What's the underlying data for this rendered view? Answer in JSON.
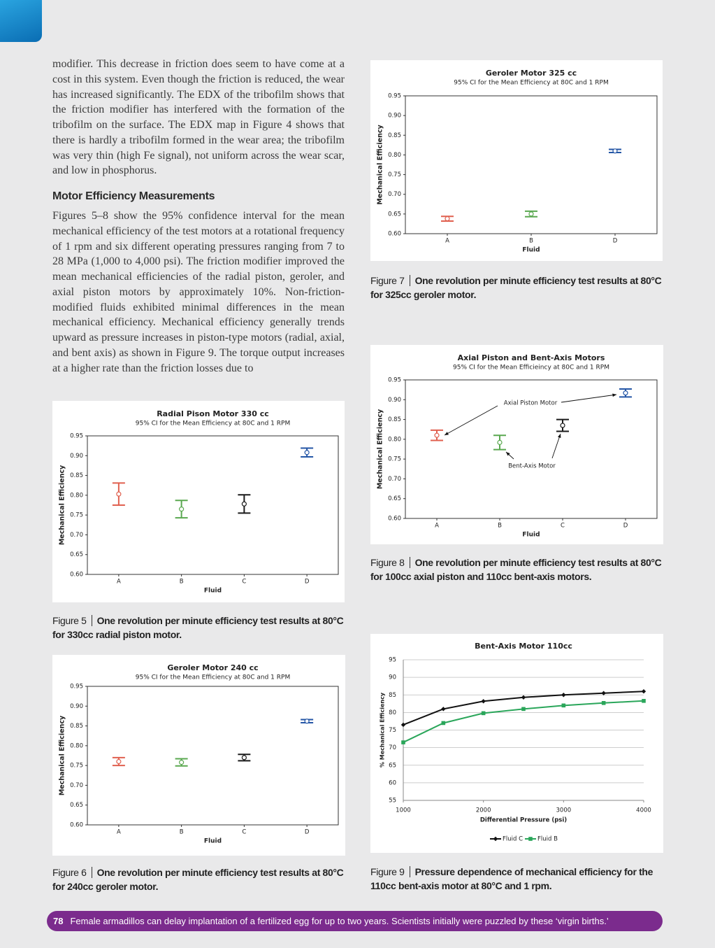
{
  "body": {
    "paragraphs": [
      "modifier. This decrease in friction does seem to have come at a cost in this system. Even though the friction is reduced, the wear has increased significantly. The EDX of the tribofilm shows that the friction modifier has interfered with the formation of the tribofilm on the surface. The EDX map in Figure 4 shows that there is hardly a tribofilm formed in the wear area; the tribofilm was very thin (high Fe signal), not uniform across the wear scar, and low in phosphorus.",
      "Figures 5–8 show the 95% confidence interval for the mean mechanical efficiency of the test motors at a rotational frequency of 1 rpm and six different operating pressures ranging from 7 to 28 MPa (1,000 to 4,000 psi). The friction modifier improved the mean mechanical efficiencies of the radial piston, geroler, and axial piston motors by approximately 10%. Non-friction-modified fluids exhibited minimal differences in the mean mechanical efficiency. Mechanical efficiency generally trends upward as pressure increases in piston-type motors (radial, axial, and bent axis) as shown in Figure 9. The torque output increases at a higher rate than the friction losses due to"
    ],
    "heading": "Motor Efficiency Measurements"
  },
  "chart_data": [
    {
      "type": "errorbar",
      "figure": "Figure 5",
      "caption": "One revolution per minute efficiency test results at 80°C for 330cc radial piston motor.",
      "title": "Radial Pison Motor 330 cc",
      "subtitle": "95% CI for the Mean Efficiency at 80C and 1 RPM",
      "xlabel": "Fluid",
      "ylabel": "Mechanical Efficiency",
      "categories": [
        "A",
        "B",
        "C",
        "D"
      ],
      "values": [
        0.803,
        0.765,
        0.778,
        0.908
      ],
      "errors": [
        0.028,
        0.022,
        0.023,
        0.011
      ],
      "colors": [
        "#e0604f",
        "#5aa850",
        "#1a1a1a",
        "#2456a6"
      ],
      "ylim": [
        0.6,
        0.95
      ],
      "yticks": [
        {
          "value": 0.6,
          "label": "0.60"
        },
        0.65,
        {
          "value": 0.7,
          "label": "0.70"
        },
        0.75,
        {
          "value": 0.8,
          "label": "0.80"
        },
        0.85,
        {
          "value": 0.9,
          "label": "0.90"
        },
        0.95
      ]
    },
    {
      "type": "errorbar",
      "figure": "Figure 6",
      "caption": "One revolution per minute efficiency test results at 80°C for 240cc geroler motor.",
      "title": "Geroler Motor 240 cc",
      "subtitle": "95% CI for the Mean Efficiency at 80C and 1 RPM",
      "xlabel": "Fluid",
      "ylabel": "Mechanical Efficiency",
      "categories": [
        "A",
        "B",
        "C",
        "D"
      ],
      "values": [
        0.76,
        0.758,
        0.77,
        0.862
      ],
      "errors": [
        0.01,
        0.009,
        0.008,
        0.004
      ],
      "colors": [
        "#e0604f",
        "#5aa850",
        "#1a1a1a",
        "#2456a6"
      ],
      "ylim": [
        0.6,
        0.95
      ],
      "yticks": [
        {
          "value": 0.6,
          "label": "0.60"
        },
        0.65,
        {
          "value": 0.7,
          "label": "0.70"
        },
        0.75,
        {
          "value": 0.8,
          "label": "0.80"
        },
        0.85,
        {
          "value": 0.9,
          "label": "0.90"
        },
        0.95
      ]
    },
    {
      "type": "errorbar",
      "figure": "Figure 7",
      "caption": "One revolution per minute efficiency test results at 80°C for 325cc geroler motor.",
      "title": "Geroler Motor 325 cc",
      "subtitle": "95% CI for the Mean Efficiency at 80C and 1 RPM",
      "xlabel": "Fluid",
      "ylabel": "Mechanical Efficiency",
      "categories": [
        "A",
        "B",
        "D"
      ],
      "values": [
        0.638,
        0.65,
        0.81
      ],
      "errors": [
        0.006,
        0.007,
        0.004
      ],
      "colors": [
        "#e0604f",
        "#5aa850",
        "#2456a6"
      ],
      "ylim": [
        0.6,
        0.95
      ],
      "yticks": [
        {
          "value": 0.6,
          "label": "0.60"
        },
        0.65,
        {
          "value": 0.7,
          "label": "0.70"
        },
        0.75,
        {
          "value": 0.8,
          "label": "0.80"
        },
        0.85,
        {
          "value": 0.9,
          "label": "0.90"
        },
        0.95
      ]
    },
    {
      "type": "errorbar",
      "figure": "Figure 8",
      "caption": "One revolution per minute efficiency test results at 80°C for 100cc axial piston and 110cc bent-axis motors.",
      "title": "Axial Piston and Bent-Axis Motors",
      "subtitle": "95% CI for the Mean Efficieincy at 80C and 1 RPM",
      "xlabel": "Fluid",
      "ylabel": "Mechanical Efficiency",
      "categories": [
        "A",
        "B",
        "C",
        "D"
      ],
      "values": [
        0.81,
        0.792,
        0.835,
        0.917
      ],
      "errors": [
        0.013,
        0.018,
        0.015,
        0.01
      ],
      "colors": [
        "#e0604f",
        "#5aa850",
        "#1a1a1a",
        "#2456a6"
      ],
      "annotations": [
        "Axial Piston Motor",
        "Bent-Axis Motor"
      ],
      "ylim": [
        0.6,
        0.95
      ],
      "yticks": [
        {
          "value": 0.6,
          "label": "0.60"
        },
        0.65,
        {
          "value": 0.7,
          "label": "0.70"
        },
        0.75,
        {
          "value": 0.8,
          "label": "0.80"
        },
        0.85,
        {
          "value": 0.9,
          "label": "0.90"
        },
        0.95
      ]
    },
    {
      "type": "line",
      "figure": "Figure 9",
      "caption": "Pressure dependence of mechanical efficiency for the 110cc bent-axis motor at 80°C and 1 rpm.",
      "title": "Bent-Axis Motor 110cc",
      "xlabel": "Differential Pressure (psi)",
      "ylabel": "% Mechanical Efficiency",
      "x": [
        1000,
        1500,
        2000,
        2500,
        3000,
        3500,
        4000
      ],
      "series": [
        {
          "name": "Fluid C",
          "color": "#111111",
          "marker": "diamond",
          "values": [
            76.5,
            81,
            83.2,
            84.3,
            85,
            85.5,
            86
          ]
        },
        {
          "name": "Fluid B",
          "color": "#2aa65a",
          "marker": "square",
          "values": [
            71.5,
            77,
            79.8,
            81,
            82,
            82.7,
            83.3
          ]
        }
      ],
      "xlim": [
        1000,
        4000
      ],
      "xticks": [
        1000,
        2000,
        3000,
        4000
      ],
      "ylim": [
        55,
        95
      ],
      "yticks": [
        55,
        60,
        65,
        70,
        75,
        80,
        85,
        90,
        95
      ],
      "grid": true,
      "legend": "bottom"
    }
  ],
  "footer": {
    "page": "78",
    "text": "Female armadillos can delay implantation of a fertilized egg for up to two years. Scientists initially were puzzled by these ‘virgin births.’"
  }
}
